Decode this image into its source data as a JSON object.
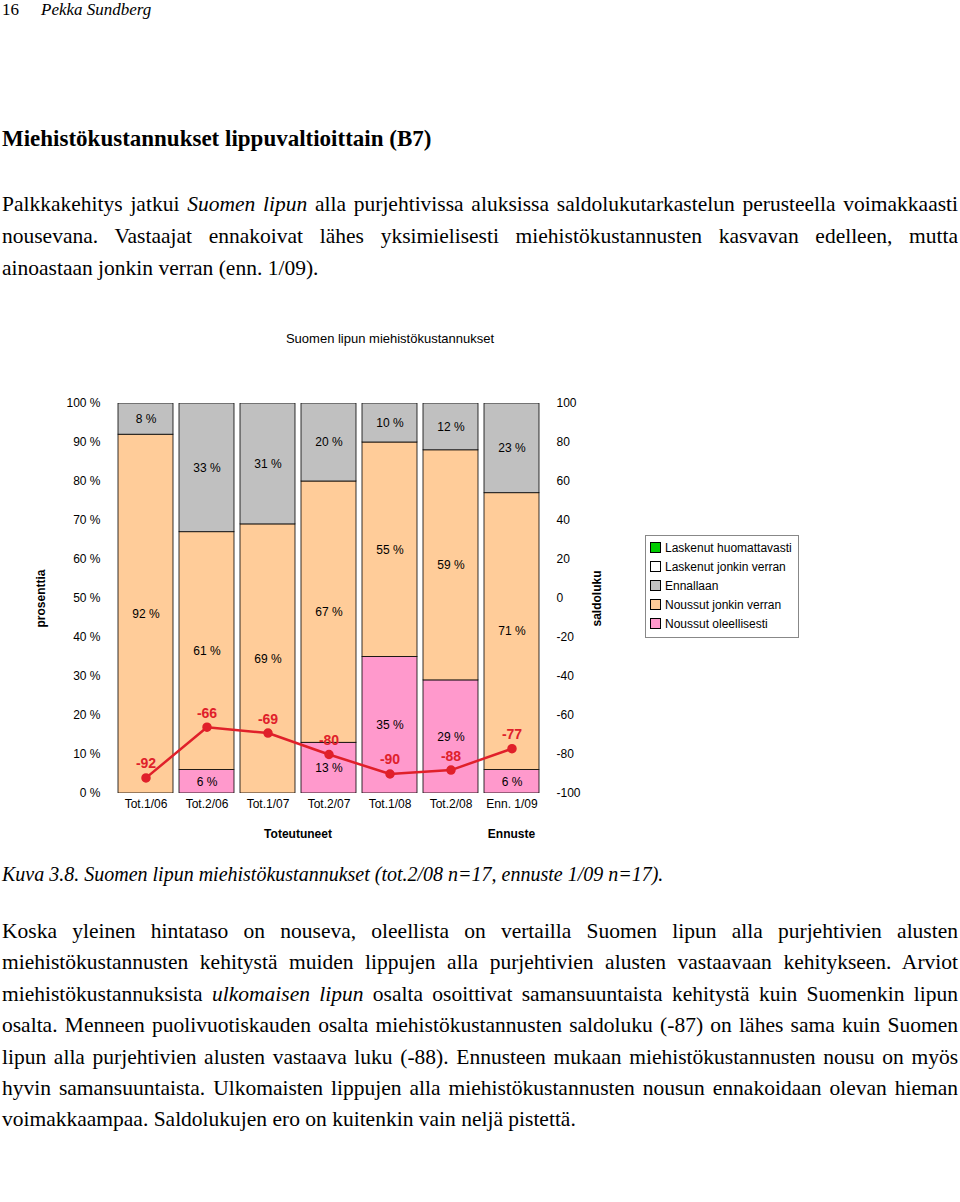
{
  "header": {
    "page": "16",
    "author": "Pekka Sundberg"
  },
  "heading": "Miehistökustannukset lippuvaltioittain (B7)",
  "intro": [
    {
      "text": "Palkkakehitys jatkui "
    },
    {
      "text": "Suomen lipun",
      "italic": true
    },
    {
      "text": " alla purjehtivissa aluksissa saldolukutarkastelun perusteella voimakkaasti nousevana. Vastaajat ennakoivat lähes yksimielisesti miehistökustannusten kasvavan edelleen, mutta ainoastaan jonkin verran (enn. 1/09)."
    }
  ],
  "chart_data": {
    "type": "bar",
    "stacked": true,
    "title": "Suomen lipun miehistökustannukset",
    "categories": [
      "Tot.1/06",
      "Tot.2/06",
      "Tot.1/07",
      "Tot.2/07",
      "Tot.1/08",
      "Tot.2/08",
      "Enn. 1/09"
    ],
    "groups": [
      {
        "label": "Toteutuneet",
        "categories": [
          "Tot.1/06",
          "Tot.2/06",
          "Tot.1/07",
          "Tot.2/07",
          "Tot.1/08",
          "Tot.2/08"
        ]
      },
      {
        "label": "Ennuste",
        "categories": [
          "Enn. 1/09"
        ]
      }
    ],
    "ylabel": "prosenttia",
    "y2label": "saldoluku",
    "ylim": [
      0,
      100
    ],
    "yticks": [
      {
        "value": 0,
        "label": "0 %"
      },
      {
        "value": 10,
        "label": "10 %"
      },
      {
        "value": 20,
        "label": "20 %"
      },
      {
        "value": 30,
        "label": "30 %"
      },
      {
        "value": 40,
        "label": "40 %"
      },
      {
        "value": 50,
        "label": "50 %"
      },
      {
        "value": 60,
        "label": "60 %"
      },
      {
        "value": 70,
        "label": "70 %"
      },
      {
        "value": 80,
        "label": "80 %"
      },
      {
        "value": 90,
        "label": "90 %"
      },
      {
        "value": 100,
        "label": "100 %"
      }
    ],
    "y2lim": [
      -100,
      100
    ],
    "y2ticks": [
      -100,
      -80,
      -60,
      -40,
      -20,
      0,
      20,
      40,
      60,
      80,
      100
    ],
    "grid": false,
    "legend": "right",
    "data_labels": true,
    "series": [
      {
        "name": "Noussut oleellisesti",
        "color": "#ff99cc",
        "values": [
          0,
          6,
          0,
          13,
          35,
          29,
          6
        ],
        "value_labels": [
          null,
          "6 %",
          null,
          "13 %",
          "35 %",
          "29 %",
          "6 %"
        ]
      },
      {
        "name": "Noussut jonkin verran",
        "color": "#ffcc99",
        "values": [
          92,
          61,
          69,
          67,
          55,
          59,
          71
        ],
        "value_labels": [
          "92 %",
          "61 %",
          "69 %",
          "67 %",
          "55 %",
          "59 %",
          "71 %"
        ]
      },
      {
        "name": "Ennallaan",
        "color": "#c0c0c0",
        "values": [
          8,
          33,
          31,
          20,
          10,
          12,
          23
        ],
        "value_labels": [
          "8 %",
          "33 %",
          "31 %",
          "20 %",
          "10 %",
          "12 %",
          "23 %"
        ]
      },
      {
        "name": "Laskenut jonkin verran",
        "color": "#ffffff",
        "values": [
          0,
          0,
          0,
          0,
          0,
          0,
          0
        ],
        "value_labels": [
          null,
          null,
          null,
          null,
          null,
          null,
          null
        ]
      },
      {
        "name": "Laskenut huomattavasti",
        "color": "#00cc00",
        "values": [
          0,
          0,
          0,
          0,
          0,
          0,
          0
        ],
        "value_labels": [
          null,
          null,
          null,
          null,
          null,
          null,
          null
        ]
      },
      {
        "type": "line",
        "axis": "y2",
        "color": "#e0202a",
        "marker": "circle",
        "values": [
          -92,
          -66,
          -69,
          -80,
          -90,
          -88,
          -77
        ]
      }
    ]
  },
  "caption": "Kuva 3.8. Suomen lipun miehistökustannukset (tot.2/08 n=17, ennuste 1/09 n=17).",
  "discussion": [
    {
      "text": "Koska yleinen hintataso on nouseva, oleellista on vertailla Suomen lipun alla purjehtivien alusten miehistökustannusten kehitystä muiden lippujen alla purjehtivien alusten vastaavaan kehitykseen. Arviot miehistökustannuksista "
    },
    {
      "text": "ulkomaisen lipun",
      "italic": true
    },
    {
      "text": " osalta osoittivat samansuuntaista kehitystä kuin Suomenkin lipun osalta. Menneen puolivuotiskauden osalta miehistökustannusten saldoluku (-87) on lähes sama kuin Suomen lipun alla purjehtivien alusten vastaava luku (-88). Ennusteen mukaan miehistökustannusten nousu on myös hyvin samansuuntaista. Ulkomaisten lippujen alla miehistökustannusten nousun ennakoidaan olevan hieman voimakkaampaa. Saldolukujen ero on kuitenkin vain neljä pistettä."
    }
  ]
}
